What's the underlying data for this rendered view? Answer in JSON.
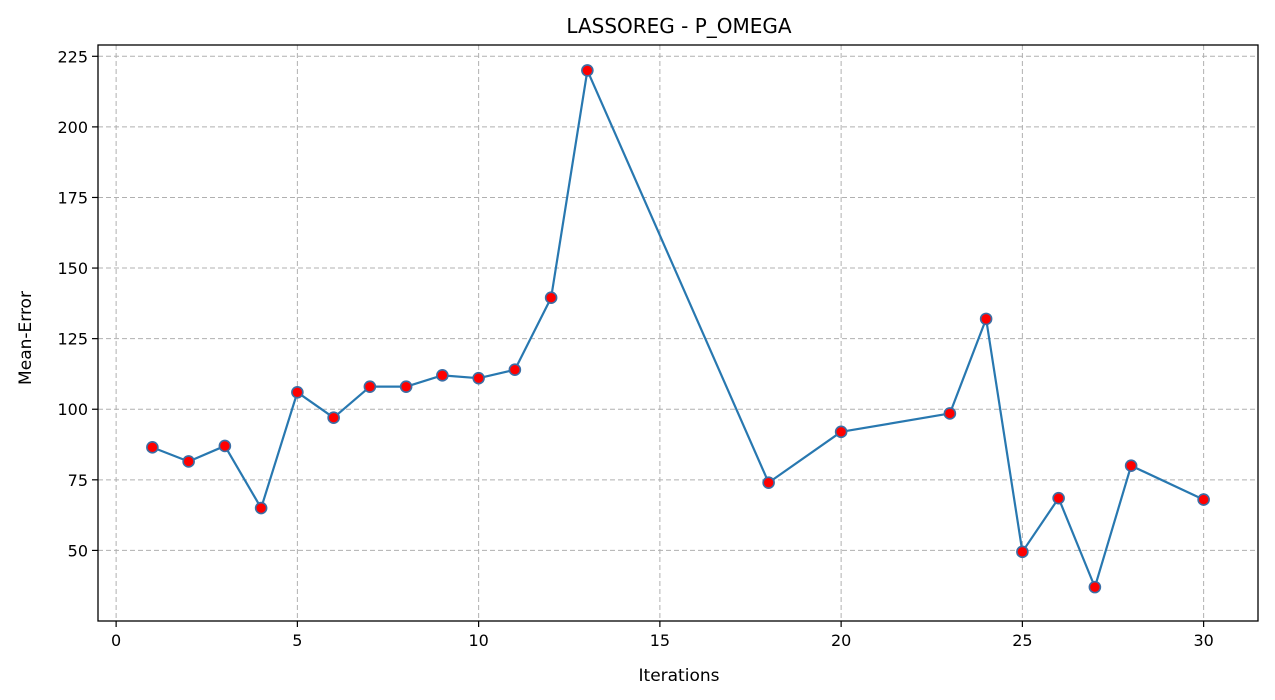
{
  "chart_data": {
    "type": "line",
    "title": "LASSOREG - P_OMEGA",
    "xlabel": "Iterations",
    "ylabel": "Mean-Error",
    "xlim": [
      -0.5,
      31.5
    ],
    "ylim": [
      25,
      229
    ],
    "xticks": [
      0,
      5,
      10,
      15,
      20,
      25,
      30
    ],
    "yticks": [
      50,
      75,
      100,
      125,
      150,
      175,
      200,
      225
    ],
    "grid": true,
    "line_color": "#2878b0",
    "marker_fill": "#ff0000",
    "marker_edge": "#3b6ea5",
    "series": [
      {
        "x": [
          1,
          2,
          3,
          4,
          5,
          6,
          7,
          8,
          9,
          10,
          11,
          12,
          13,
          18,
          20,
          23,
          24,
          25,
          26,
          27,
          28,
          30
        ],
        "y": [
          86.5,
          81.5,
          87,
          65,
          106,
          97,
          108,
          108,
          112,
          111,
          114,
          139.5,
          220,
          74,
          92,
          98.5,
          132,
          49.5,
          68.5,
          37,
          80,
          68
        ]
      }
    ]
  }
}
